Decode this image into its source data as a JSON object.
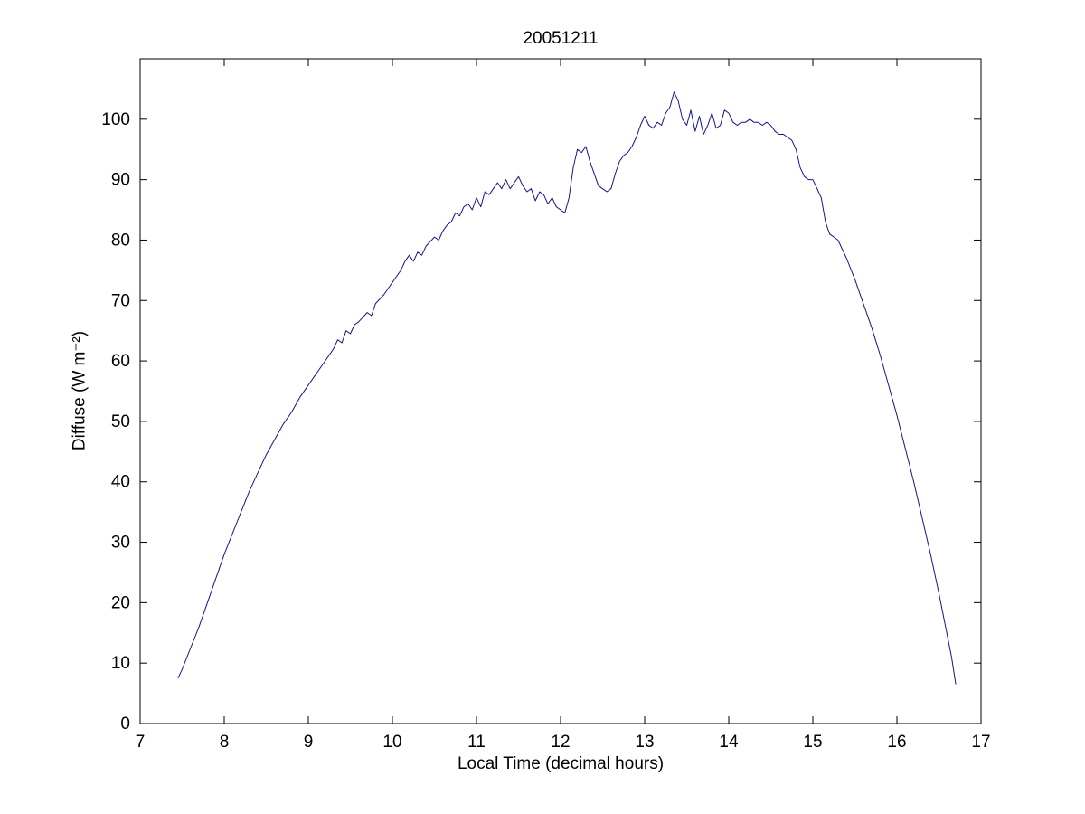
{
  "chart_data": {
    "type": "line",
    "title": "20051211",
    "xlabel": "Local Time (decimal hours)",
    "ylabel": "Diffuse (W m⁻²)",
    "xlim": [
      7,
      17
    ],
    "ylim": [
      0,
      110
    ],
    "xticks": [
      7,
      8,
      9,
      10,
      11,
      12,
      13,
      14,
      15,
      16,
      17
    ],
    "yticks": [
      0,
      10,
      20,
      30,
      40,
      50,
      60,
      70,
      80,
      90,
      100
    ],
    "grid": false,
    "legend": "none",
    "line_color": "#14148c",
    "axis_color": "#000000",
    "series_name": "diffuse-irradiance",
    "x": [
      7.45,
      7.5,
      7.6,
      7.7,
      7.8,
      7.9,
      8.0,
      8.1,
      8.2,
      8.3,
      8.4,
      8.5,
      8.6,
      8.7,
      8.8,
      8.9,
      9.0,
      9.1,
      9.2,
      9.25,
      9.3,
      9.35,
      9.4,
      9.45,
      9.5,
      9.55,
      9.6,
      9.7,
      9.75,
      9.8,
      9.9,
      10.0,
      10.05,
      10.1,
      10.15,
      10.2,
      10.25,
      10.3,
      10.35,
      10.4,
      10.5,
      10.55,
      10.6,
      10.65,
      10.7,
      10.75,
      10.8,
      10.85,
      10.9,
      10.95,
      11.0,
      11.05,
      11.1,
      11.15,
      11.2,
      11.25,
      11.3,
      11.35,
      11.4,
      11.45,
      11.5,
      11.55,
      11.6,
      11.65,
      11.7,
      11.75,
      11.8,
      11.85,
      11.9,
      11.95,
      12.0,
      12.05,
      12.1,
      12.15,
      12.2,
      12.25,
      12.3,
      12.35,
      12.4,
      12.45,
      12.5,
      12.55,
      12.6,
      12.65,
      12.7,
      12.75,
      12.8,
      12.85,
      12.9,
      12.95,
      13.0,
      13.05,
      13.1,
      13.15,
      13.2,
      13.25,
      13.3,
      13.35,
      13.4,
      13.45,
      13.5,
      13.55,
      13.6,
      13.65,
      13.7,
      13.75,
      13.8,
      13.85,
      13.9,
      13.95,
      14.0,
      14.05,
      14.1,
      14.15,
      14.2,
      14.25,
      14.3,
      14.35,
      14.4,
      14.45,
      14.5,
      14.55,
      14.6,
      14.65,
      14.7,
      14.75,
      14.8,
      14.85,
      14.9,
      14.95,
      15.0,
      15.05,
      15.1,
      15.15,
      15.2,
      15.25,
      15.3,
      15.35,
      15.4,
      15.5,
      15.6,
      15.7,
      15.8,
      15.9,
      16.0,
      16.1,
      16.2,
      16.3,
      16.4,
      16.5,
      16.6,
      16.65,
      16.7
    ],
    "y": [
      7.5,
      9,
      12.5,
      16,
      20,
      24,
      28,
      31.5,
      35,
      38.5,
      41.5,
      44.5,
      47,
      49.5,
      51.5,
      54,
      56,
      58,
      60,
      61,
      62,
      63.5,
      63,
      65,
      64.5,
      66,
      66.5,
      68,
      67.5,
      69.5,
      71,
      73,
      74,
      75,
      76.5,
      77.5,
      76.5,
      78,
      77.5,
      79,
      80.5,
      80,
      81.5,
      82.5,
      83,
      84.5,
      84,
      85.5,
      86,
      85,
      87,
      85.5,
      88,
      87.5,
      88.5,
      89.5,
      88.5,
      90,
      88.5,
      89.5,
      90.5,
      89,
      88,
      88.5,
      86.5,
      88,
      87.5,
      86,
      87,
      85.5,
      85,
      84.5,
      87,
      92,
      95,
      94.5,
      95.5,
      93,
      91,
      89,
      88.5,
      88,
      88.5,
      91,
      93,
      94,
      94.5,
      95.5,
      97,
      99,
      100.5,
      99,
      98.5,
      99.5,
      99,
      101,
      102,
      104.5,
      103,
      100,
      99,
      101.5,
      98,
      100.5,
      97.5,
      99,
      101,
      98.5,
      99,
      101.5,
      101,
      99.5,
      99,
      99.5,
      99.5,
      100,
      99.5,
      99.5,
      99,
      99.5,
      99,
      98,
      97.5,
      97.5,
      97,
      96.5,
      95,
      92,
      90.5,
      90,
      90,
      88.5,
      87,
      83,
      81,
      80.5,
      80,
      78.5,
      77,
      73.5,
      69.5,
      65.5,
      61,
      56,
      51,
      45.5,
      40,
      34,
      28,
      21.5,
      14.5,
      11,
      6.5
    ]
  }
}
